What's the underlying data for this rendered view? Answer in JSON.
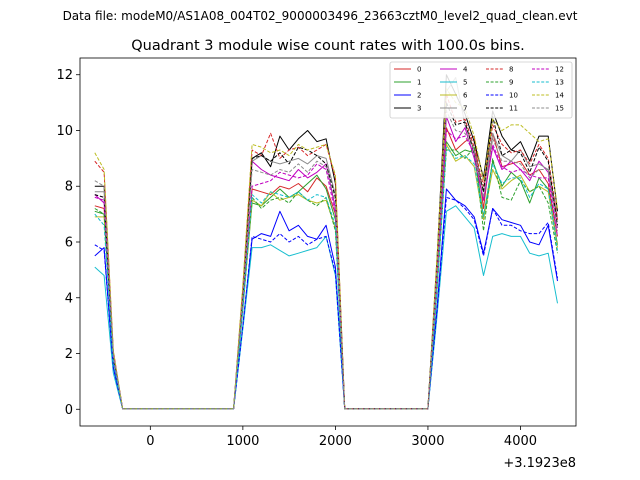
{
  "suptitle": "Data file: modeM0/AS1A08_004T02_9000003496_23663cztM0_level2_quad_clean.evt",
  "chart_data": {
    "type": "line",
    "title": "Quadrant 3 module wise count rates with 100.0s bins.",
    "xlabel": "",
    "ylabel": "",
    "x_offset_label": "+3.1923e8",
    "xlim": [
      -760,
      4600
    ],
    "ylim": [
      -0.6,
      12.6
    ],
    "xticks": [
      0,
      1000,
      2000,
      3000,
      4000
    ],
    "xtick_labels": [
      "0",
      "1000",
      "2000",
      "3000",
      "4000"
    ],
    "yticks": [
      0,
      2,
      4,
      6,
      8,
      10,
      12
    ],
    "ytick_labels": [
      "0",
      "2",
      "4",
      "6",
      "8",
      "10",
      "12"
    ],
    "legend_location": "top-right",
    "x": [
      -600,
      -500,
      -400,
      -300,
      -200,
      -100,
      0,
      100,
      200,
      300,
      400,
      500,
      600,
      700,
      800,
      900,
      1000,
      1100,
      1200,
      1300,
      1400,
      1500,
      1600,
      1700,
      1800,
      1900,
      2000,
      2100,
      2200,
      2300,
      2400,
      2500,
      2600,
      2700,
      2800,
      2900,
      3000,
      3100,
      3200,
      3300,
      3400,
      3500,
      3600,
      3700,
      3800,
      3900,
      4000,
      4100,
      4200,
      4300,
      4400
    ],
    "series": [
      {
        "name": "0",
        "color": "#d62728",
        "dash": "solid",
        "values": [
          7.3,
          7.2,
          1.9,
          0.02,
          0.02,
          0.02,
          0.02,
          0.02,
          0.02,
          0.02,
          0.02,
          0.02,
          0.02,
          0.02,
          0.02,
          0.02,
          3.8,
          7.9,
          7.8,
          7.7,
          8.0,
          7.9,
          8.1,
          7.8,
          8.3,
          8.0,
          7.0,
          0.02,
          0.02,
          0.02,
          0.02,
          0.02,
          0.02,
          0.02,
          0.02,
          0.02,
          0.02,
          4.5,
          10.1,
          9.3,
          9.6,
          9.8,
          7.2,
          9.9,
          8.7,
          8.8,
          8.9,
          8.4,
          8.6,
          8.1,
          6.2
        ]
      },
      {
        "name": "1",
        "color": "#2ca02c",
        "dash": "solid",
        "values": [
          7.1,
          7.0,
          1.8,
          0.02,
          0.02,
          0.02,
          0.02,
          0.02,
          0.02,
          0.02,
          0.02,
          0.02,
          0.02,
          0.02,
          0.02,
          0.02,
          3.7,
          7.4,
          7.3,
          7.6,
          7.9,
          7.6,
          7.8,
          8.1,
          8.4,
          7.9,
          6.8,
          0.02,
          0.02,
          0.02,
          0.02,
          0.02,
          0.02,
          0.02,
          0.02,
          0.02,
          0.02,
          4.4,
          9.6,
          9.1,
          9.3,
          9.2,
          6.9,
          8.9,
          8.0,
          8.5,
          8.2,
          7.4,
          8.3,
          7.9,
          5.9
        ]
      },
      {
        "name": "2",
        "color": "#0000ff",
        "dash": "solid",
        "values": [
          5.5,
          5.8,
          1.5,
          0.02,
          0.02,
          0.02,
          0.02,
          0.02,
          0.02,
          0.02,
          0.02,
          0.02,
          0.02,
          0.02,
          0.02,
          0.02,
          3.0,
          6.1,
          6.3,
          6.2,
          7.1,
          6.4,
          6.6,
          6.2,
          6.1,
          6.6,
          5.1,
          0.02,
          0.02,
          0.02,
          0.02,
          0.02,
          0.02,
          0.02,
          0.02,
          0.02,
          0.02,
          3.7,
          7.9,
          7.5,
          7.3,
          6.9,
          5.6,
          7.2,
          6.8,
          6.7,
          6.6,
          6.0,
          5.9,
          6.6,
          4.6
        ]
      },
      {
        "name": "3",
        "color": "#000000",
        "dash": "solid",
        "values": [
          8.0,
          8.0,
          2.0,
          0.02,
          0.02,
          0.02,
          0.02,
          0.02,
          0.02,
          0.02,
          0.02,
          0.02,
          0.02,
          0.02,
          0.02,
          0.02,
          4.3,
          9.0,
          9.2,
          8.7,
          9.8,
          9.3,
          9.7,
          10.0,
          9.6,
          9.7,
          8.1,
          0.02,
          0.02,
          0.02,
          0.02,
          0.02,
          0.02,
          0.02,
          0.02,
          0.02,
          0.02,
          5.5,
          12.0,
          11.3,
          10.6,
          9.6,
          8.3,
          10.7,
          9.8,
          9.3,
          9.6,
          8.9,
          9.8,
          9.8,
          7.1
        ]
      },
      {
        "name": "4",
        "color": "#c000c0",
        "dash": "solid",
        "values": [
          7.7,
          7.4,
          1.9,
          0.02,
          0.02,
          0.02,
          0.02,
          0.02,
          0.02,
          0.02,
          0.02,
          0.02,
          0.02,
          0.02,
          0.02,
          0.02,
          4.0,
          8.9,
          8.6,
          8.4,
          8.3,
          8.2,
          8.6,
          8.3,
          8.5,
          8.8,
          7.2,
          0.02,
          0.02,
          0.02,
          0.02,
          0.02,
          0.02,
          0.02,
          0.02,
          0.02,
          0.02,
          4.9,
          10.5,
          9.6,
          10.1,
          9.0,
          7.5,
          9.4,
          8.6,
          8.9,
          8.6,
          8.2,
          8.9,
          8.5,
          6.5
        ]
      },
      {
        "name": "5",
        "color": "#17becf",
        "dash": "solid",
        "values": [
          5.1,
          4.8,
          1.3,
          0.02,
          0.02,
          0.02,
          0.02,
          0.02,
          0.02,
          0.02,
          0.02,
          0.02,
          0.02,
          0.02,
          0.02,
          0.02,
          2.9,
          5.8,
          5.8,
          5.9,
          5.7,
          5.5,
          5.6,
          5.7,
          5.8,
          6.2,
          4.8,
          0.02,
          0.02,
          0.02,
          0.02,
          0.02,
          0.02,
          0.02,
          0.02,
          0.02,
          0.02,
          3.4,
          7.1,
          7.3,
          6.9,
          6.5,
          4.8,
          6.2,
          6.3,
          6.2,
          6.2,
          5.6,
          5.5,
          5.6,
          3.8
        ]
      },
      {
        "name": "6",
        "color": "#bcbd22",
        "dash": "solid",
        "values": [
          6.9,
          6.9,
          1.8,
          0.02,
          0.02,
          0.02,
          0.02,
          0.02,
          0.02,
          0.02,
          0.02,
          0.02,
          0.02,
          0.02,
          0.02,
          0.02,
          3.6,
          7.5,
          7.3,
          7.8,
          7.5,
          7.6,
          7.7,
          7.5,
          7.4,
          7.5,
          6.5,
          0.02,
          0.02,
          0.02,
          0.02,
          0.02,
          0.02,
          0.02,
          0.02,
          0.02,
          0.02,
          4.4,
          9.5,
          8.9,
          9.1,
          8.7,
          6.8,
          8.6,
          7.9,
          8.2,
          8.4,
          7.8,
          8.0,
          7.8,
          5.8
        ]
      },
      {
        "name": "7",
        "color": "#8c8c8c",
        "dash": "solid",
        "values": [
          7.8,
          7.8,
          2.0,
          0.02,
          0.02,
          0.02,
          0.02,
          0.02,
          0.02,
          0.02,
          0.02,
          0.02,
          0.02,
          0.02,
          0.02,
          0.02,
          4.0,
          8.9,
          9.1,
          8.9,
          8.8,
          8.9,
          9.0,
          8.8,
          9.1,
          9.0,
          7.7,
          0.02,
          0.02,
          0.02,
          0.02,
          0.02,
          0.02,
          0.02,
          0.02,
          0.02,
          0.02,
          5.3,
          11.4,
          11.9,
          10.2,
          9.3,
          7.8,
          9.9,
          9.1,
          8.9,
          9.3,
          8.7,
          8.8,
          8.6,
          6.9
        ]
      },
      {
        "name": "8",
        "color": "#d62728",
        "dash": "dashed",
        "values": [
          8.9,
          8.5,
          2.1,
          0.02,
          0.02,
          0.02,
          0.02,
          0.02,
          0.02,
          0.02,
          0.02,
          0.02,
          0.02,
          0.02,
          0.02,
          0.02,
          4.4,
          9.3,
          9.1,
          9.9,
          9.0,
          9.3,
          9.4,
          9.1,
          9.3,
          9.5,
          8.3,
          0.02,
          0.02,
          0.02,
          0.02,
          0.02,
          0.02,
          0.02,
          0.02,
          0.02,
          0.02,
          5.3,
          11.3,
          10.3,
          10.4,
          9.4,
          8.0,
          10.2,
          9.5,
          9.2,
          9.3,
          8.8,
          9.5,
          9.0,
          6.8
        ]
      },
      {
        "name": "9",
        "color": "#2ca02c",
        "dash": "dashed",
        "values": [
          7.2,
          7.0,
          1.8,
          0.02,
          0.02,
          0.02,
          0.02,
          0.02,
          0.02,
          0.02,
          0.02,
          0.02,
          0.02,
          0.02,
          0.02,
          0.02,
          3.7,
          7.6,
          7.2,
          7.5,
          7.6,
          7.4,
          7.8,
          7.5,
          7.3,
          7.6,
          6.4,
          0.02,
          0.02,
          0.02,
          0.02,
          0.02,
          0.02,
          0.02,
          0.02,
          0.02,
          0.02,
          4.4,
          9.3,
          9.3,
          9.0,
          9.4,
          6.4,
          9.0,
          7.6,
          7.5,
          8.2,
          7.8,
          8.0,
          7.4,
          5.6
        ]
      },
      {
        "name": "10",
        "color": "#0000ff",
        "dash": "dashed",
        "values": [
          5.9,
          5.7,
          1.5,
          0.02,
          0.02,
          0.02,
          0.02,
          0.02,
          0.02,
          0.02,
          0.02,
          0.02,
          0.02,
          0.02,
          0.02,
          0.02,
          3.0,
          6.2,
          6.1,
          6.0,
          6.3,
          6.0,
          6.2,
          5.9,
          6.1,
          6.2,
          4.9,
          0.02,
          0.02,
          0.02,
          0.02,
          0.02,
          0.02,
          0.02,
          0.02,
          0.02,
          0.02,
          3.6,
          7.6,
          7.5,
          7.2,
          6.8,
          5.5,
          7.2,
          6.6,
          6.6,
          6.4,
          6.3,
          6.3,
          6.7,
          4.7
        ]
      },
      {
        "name": "11",
        "color": "#000000",
        "dash": "dashed",
        "values": [
          7.7,
          7.6,
          1.9,
          0.02,
          0.02,
          0.02,
          0.02,
          0.02,
          0.02,
          0.02,
          0.02,
          0.02,
          0.02,
          0.02,
          0.02,
          0.02,
          4.1,
          9.0,
          9.1,
          8.9,
          9.2,
          8.8,
          9.4,
          9.3,
          9.1,
          8.8,
          7.6,
          0.02,
          0.02,
          0.02,
          0.02,
          0.02,
          0.02,
          0.02,
          0.02,
          0.02,
          0.02,
          5.1,
          11.0,
          10.2,
          10.3,
          9.2,
          7.8,
          10.5,
          9.1,
          9.3,
          9.2,
          8.5,
          9.4,
          8.9,
          6.6
        ]
      },
      {
        "name": "12",
        "color": "#c000c0",
        "dash": "dashed",
        "values": [
          7.6,
          7.5,
          1.9,
          0.02,
          0.02,
          0.02,
          0.02,
          0.02,
          0.02,
          0.02,
          0.02,
          0.02,
          0.02,
          0.02,
          0.02,
          0.02,
          3.9,
          8.0,
          8.1,
          8.2,
          8.5,
          8.4,
          8.3,
          8.4,
          8.8,
          8.6,
          7.0,
          0.02,
          0.02,
          0.02,
          0.02,
          0.02,
          0.02,
          0.02,
          0.02,
          0.02,
          0.02,
          4.7,
          10.0,
          9.7,
          9.8,
          9.2,
          7.5,
          9.5,
          8.7,
          8.5,
          8.6,
          8.4,
          8.3,
          8.3,
          6.2
        ]
      },
      {
        "name": "13",
        "color": "#17becf",
        "dash": "dashed",
        "values": [
          7.0,
          6.6,
          1.7,
          0.02,
          0.02,
          0.02,
          0.02,
          0.02,
          0.02,
          0.02,
          0.02,
          0.02,
          0.02,
          0.02,
          0.02,
          0.02,
          3.6,
          7.7,
          7.4,
          7.8,
          7.7,
          7.6,
          7.8,
          7.5,
          7.7,
          7.6,
          6.6,
          0.02,
          0.02,
          0.02,
          0.02,
          0.02,
          0.02,
          0.02,
          0.02,
          0.02,
          0.02,
          4.4,
          9.4,
          9.0,
          9.1,
          8.8,
          6.9,
          8.8,
          8.1,
          8.3,
          8.3,
          7.6,
          8.1,
          7.9,
          5.7
        ]
      },
      {
        "name": "14",
        "color": "#bcbd22",
        "dash": "dashed",
        "values": [
          9.2,
          8.6,
          2.1,
          0.02,
          0.02,
          0.02,
          0.02,
          0.02,
          0.02,
          0.02,
          0.02,
          0.02,
          0.02,
          0.02,
          0.02,
          0.02,
          4.5,
          9.5,
          9.4,
          9.2,
          9.3,
          9.1,
          9.5,
          9.3,
          9.4,
          9.5,
          8.4,
          0.02,
          0.02,
          0.02,
          0.02,
          0.02,
          0.02,
          0.02,
          0.02,
          0.02,
          0.02,
          5.6,
          11.5,
          11.0,
          10.8,
          9.8,
          8.2,
          10.4,
          10.0,
          10.2,
          10.2,
          9.9,
          9.6,
          9.7,
          7.2
        ]
      },
      {
        "name": "15",
        "color": "#8c8c8c",
        "dash": "dashed",
        "values": [
          8.2,
          8.0,
          2.0,
          0.02,
          0.02,
          0.02,
          0.02,
          0.02,
          0.02,
          0.02,
          0.02,
          0.02,
          0.02,
          0.02,
          0.02,
          0.02,
          4.1,
          8.6,
          8.5,
          8.4,
          8.6,
          8.5,
          8.8,
          8.5,
          8.9,
          8.7,
          7.4,
          0.02,
          0.02,
          0.02,
          0.02,
          0.02,
          0.02,
          0.02,
          0.02,
          0.02,
          0.02,
          5.0,
          10.7,
          10.0,
          9.9,
          9.3,
          7.6,
          9.7,
          8.9,
          8.9,
          8.8,
          8.3,
          8.6,
          8.6,
          6.4
        ]
      }
    ]
  }
}
